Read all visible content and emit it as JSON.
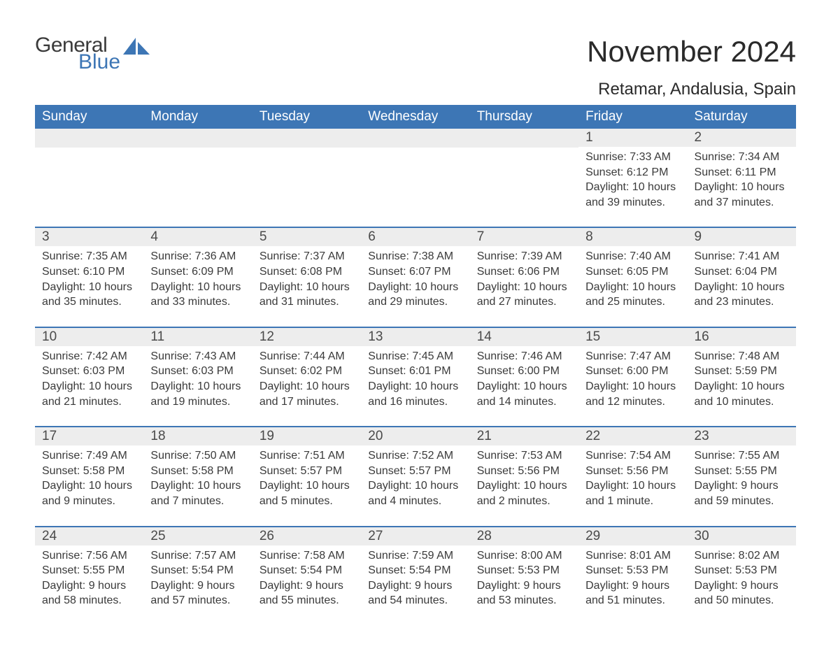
{
  "logo": {
    "line1": "General",
    "line2": "Blue",
    "icon_color": "#3d76b5",
    "text1_color": "#3a3a3a"
  },
  "title": {
    "month": "November 2024",
    "location": "Retamar, Andalusia, Spain"
  },
  "colors": {
    "header_bg": "#3d76b5",
    "header_text": "#ffffff",
    "daynum_bg": "#ededed",
    "week_border": "#3d76b5",
    "body_text": "#3a3a3a"
  },
  "day_headers": [
    "Sunday",
    "Monday",
    "Tuesday",
    "Wednesday",
    "Thursday",
    "Friday",
    "Saturday"
  ],
  "weeks": [
    [
      {
        "empty": true
      },
      {
        "empty": true
      },
      {
        "empty": true
      },
      {
        "empty": true
      },
      {
        "empty": true
      },
      {
        "num": "1",
        "sunrise": "Sunrise: 7:33 AM",
        "sunset": "Sunset: 6:12 PM",
        "daylight": "Daylight: 10 hours and 39 minutes."
      },
      {
        "num": "2",
        "sunrise": "Sunrise: 7:34 AM",
        "sunset": "Sunset: 6:11 PM",
        "daylight": "Daylight: 10 hours and 37 minutes."
      }
    ],
    [
      {
        "num": "3",
        "sunrise": "Sunrise: 7:35 AM",
        "sunset": "Sunset: 6:10 PM",
        "daylight": "Daylight: 10 hours and 35 minutes."
      },
      {
        "num": "4",
        "sunrise": "Sunrise: 7:36 AM",
        "sunset": "Sunset: 6:09 PM",
        "daylight": "Daylight: 10 hours and 33 minutes."
      },
      {
        "num": "5",
        "sunrise": "Sunrise: 7:37 AM",
        "sunset": "Sunset: 6:08 PM",
        "daylight": "Daylight: 10 hours and 31 minutes."
      },
      {
        "num": "6",
        "sunrise": "Sunrise: 7:38 AM",
        "sunset": "Sunset: 6:07 PM",
        "daylight": "Daylight: 10 hours and 29 minutes."
      },
      {
        "num": "7",
        "sunrise": "Sunrise: 7:39 AM",
        "sunset": "Sunset: 6:06 PM",
        "daylight": "Daylight: 10 hours and 27 minutes."
      },
      {
        "num": "8",
        "sunrise": "Sunrise: 7:40 AM",
        "sunset": "Sunset: 6:05 PM",
        "daylight": "Daylight: 10 hours and 25 minutes."
      },
      {
        "num": "9",
        "sunrise": "Sunrise: 7:41 AM",
        "sunset": "Sunset: 6:04 PM",
        "daylight": "Daylight: 10 hours and 23 minutes."
      }
    ],
    [
      {
        "num": "10",
        "sunrise": "Sunrise: 7:42 AM",
        "sunset": "Sunset: 6:03 PM",
        "daylight": "Daylight: 10 hours and 21 minutes."
      },
      {
        "num": "11",
        "sunrise": "Sunrise: 7:43 AM",
        "sunset": "Sunset: 6:03 PM",
        "daylight": "Daylight: 10 hours and 19 minutes."
      },
      {
        "num": "12",
        "sunrise": "Sunrise: 7:44 AM",
        "sunset": "Sunset: 6:02 PM",
        "daylight": "Daylight: 10 hours and 17 minutes."
      },
      {
        "num": "13",
        "sunrise": "Sunrise: 7:45 AM",
        "sunset": "Sunset: 6:01 PM",
        "daylight": "Daylight: 10 hours and 16 minutes."
      },
      {
        "num": "14",
        "sunrise": "Sunrise: 7:46 AM",
        "sunset": "Sunset: 6:00 PM",
        "daylight": "Daylight: 10 hours and 14 minutes."
      },
      {
        "num": "15",
        "sunrise": "Sunrise: 7:47 AM",
        "sunset": "Sunset: 6:00 PM",
        "daylight": "Daylight: 10 hours and 12 minutes."
      },
      {
        "num": "16",
        "sunrise": "Sunrise: 7:48 AM",
        "sunset": "Sunset: 5:59 PM",
        "daylight": "Daylight: 10 hours and 10 minutes."
      }
    ],
    [
      {
        "num": "17",
        "sunrise": "Sunrise: 7:49 AM",
        "sunset": "Sunset: 5:58 PM",
        "daylight": "Daylight: 10 hours and 9 minutes."
      },
      {
        "num": "18",
        "sunrise": "Sunrise: 7:50 AM",
        "sunset": "Sunset: 5:58 PM",
        "daylight": "Daylight: 10 hours and 7 minutes."
      },
      {
        "num": "19",
        "sunrise": "Sunrise: 7:51 AM",
        "sunset": "Sunset: 5:57 PM",
        "daylight": "Daylight: 10 hours and 5 minutes."
      },
      {
        "num": "20",
        "sunrise": "Sunrise: 7:52 AM",
        "sunset": "Sunset: 5:57 PM",
        "daylight": "Daylight: 10 hours and 4 minutes."
      },
      {
        "num": "21",
        "sunrise": "Sunrise: 7:53 AM",
        "sunset": "Sunset: 5:56 PM",
        "daylight": "Daylight: 10 hours and 2 minutes."
      },
      {
        "num": "22",
        "sunrise": "Sunrise: 7:54 AM",
        "sunset": "Sunset: 5:56 PM",
        "daylight": "Daylight: 10 hours and 1 minute."
      },
      {
        "num": "23",
        "sunrise": "Sunrise: 7:55 AM",
        "sunset": "Sunset: 5:55 PM",
        "daylight": "Daylight: 9 hours and 59 minutes."
      }
    ],
    [
      {
        "num": "24",
        "sunrise": "Sunrise: 7:56 AM",
        "sunset": "Sunset: 5:55 PM",
        "daylight": "Daylight: 9 hours and 58 minutes."
      },
      {
        "num": "25",
        "sunrise": "Sunrise: 7:57 AM",
        "sunset": "Sunset: 5:54 PM",
        "daylight": "Daylight: 9 hours and 57 minutes."
      },
      {
        "num": "26",
        "sunrise": "Sunrise: 7:58 AM",
        "sunset": "Sunset: 5:54 PM",
        "daylight": "Daylight: 9 hours and 55 minutes."
      },
      {
        "num": "27",
        "sunrise": "Sunrise: 7:59 AM",
        "sunset": "Sunset: 5:54 PM",
        "daylight": "Daylight: 9 hours and 54 minutes."
      },
      {
        "num": "28",
        "sunrise": "Sunrise: 8:00 AM",
        "sunset": "Sunset: 5:53 PM",
        "daylight": "Daylight: 9 hours and 53 minutes."
      },
      {
        "num": "29",
        "sunrise": "Sunrise: 8:01 AM",
        "sunset": "Sunset: 5:53 PM",
        "daylight": "Daylight: 9 hours and 51 minutes."
      },
      {
        "num": "30",
        "sunrise": "Sunrise: 8:02 AM",
        "sunset": "Sunset: 5:53 PM",
        "daylight": "Daylight: 9 hours and 50 minutes."
      }
    ]
  ]
}
